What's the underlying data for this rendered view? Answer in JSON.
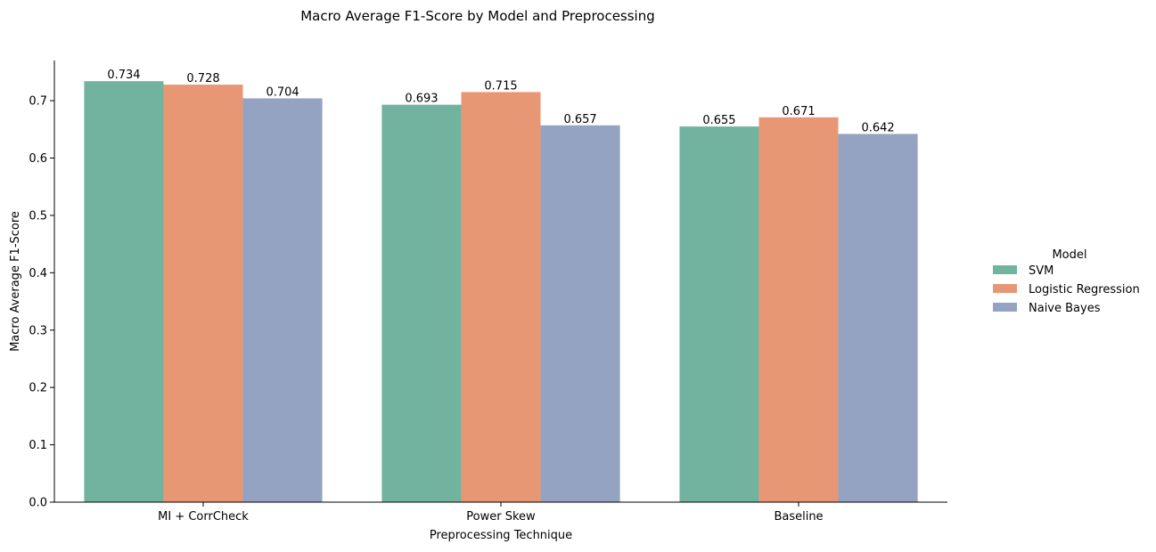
{
  "chart_data": {
    "type": "bar",
    "title": "Macro Average F1-Score by Model and Preprocessing",
    "xlabel": "Preprocessing Technique",
    "ylabel": "Macro Average F1-Score",
    "categories": [
      "MI + CorrCheck",
      "Power Skew",
      "Baseline"
    ],
    "series": [
      {
        "name": "SVM",
        "values": [
          0.734,
          0.693,
          0.655
        ],
        "color": "#72b39f"
      },
      {
        "name": "Logistic Regression",
        "values": [
          0.728,
          0.715,
          0.671
        ],
        "color": "#e89775"
      },
      {
        "name": "Naive Bayes",
        "values": [
          0.704,
          0.657,
          0.642
        ],
        "color": "#94a3c1"
      }
    ],
    "data_labels": [
      [
        "0.734",
        "0.693",
        "0.655"
      ],
      [
        "0.728",
        "0.715",
        "0.671"
      ],
      [
        "0.704",
        "0.657",
        "0.642"
      ]
    ],
    "ylim": [
      0,
      0.77
    ],
    "yticks": [
      0.0,
      0.1,
      0.2,
      0.3,
      0.4,
      0.5,
      0.6,
      0.7
    ],
    "ytick_labels": [
      "0.0",
      "0.1",
      "0.2",
      "0.3",
      "0.4",
      "0.5",
      "0.6",
      "0.7"
    ],
    "grid": false,
    "legend": {
      "title": "Model",
      "placement": "center-right outside"
    }
  }
}
